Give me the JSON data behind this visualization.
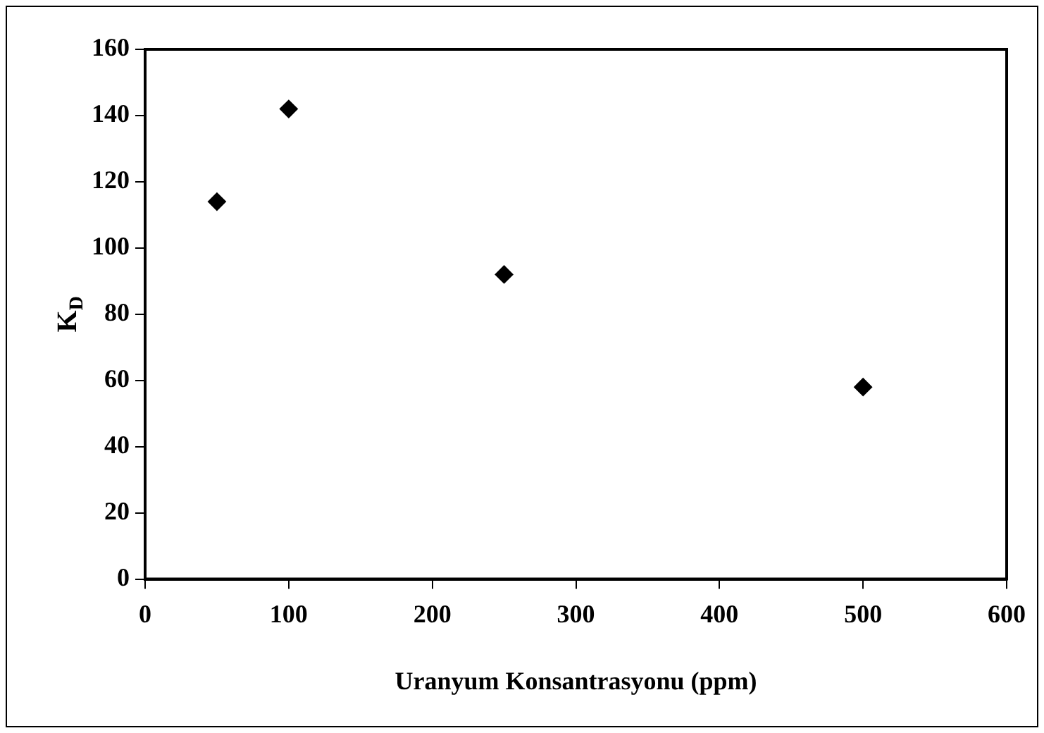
{
  "chart_data": {
    "type": "scatter",
    "xlabel": "Uranyum Konsantrasyonu (ppm)",
    "ylabel": "K$_{D}$",
    "x": [
      50,
      100,
      250,
      500
    ],
    "series": [
      {
        "color": "#000000",
        "values": [
          114,
          142,
          92,
          58
        ]
      }
    ],
    "xlim": [
      0,
      600
    ],
    "xticks": [
      0,
      100,
      200,
      300,
      400,
      500,
      600
    ],
    "ylim": [
      0,
      160
    ],
    "yticks": [
      0,
      20,
      40,
      60,
      80,
      100,
      120,
      140,
      160
    ],
    "marker": "diamond",
    "grid": false,
    "legend": false
  }
}
